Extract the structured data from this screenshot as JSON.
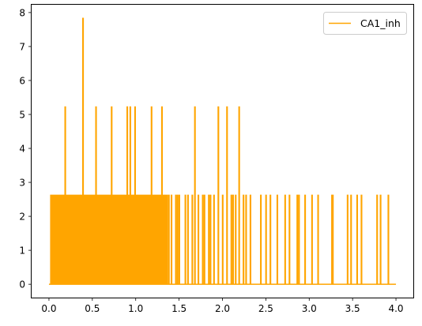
{
  "chart_data": {
    "type": "line",
    "title": "",
    "xlabel": "",
    "ylabel": "",
    "xlim": [
      -0.2,
      4.2
    ],
    "ylim": [
      -0.392,
      8.23
    ],
    "xticks": [
      0.0,
      0.5,
      1.0,
      1.5,
      2.0,
      2.5,
      3.0,
      3.5,
      4.0
    ],
    "xtick_labels": [
      "0.0",
      "0.5",
      "1.0",
      "1.5",
      "2.0",
      "2.5",
      "3.0",
      "3.5",
      "4.0"
    ],
    "yticks": [
      0,
      1,
      2,
      3,
      4,
      5,
      6,
      7,
      8
    ],
    "ytick_labels": [
      "0",
      "1",
      "2",
      "3",
      "4",
      "5",
      "6",
      "7",
      "8"
    ],
    "grid": false,
    "legend_position": "top-right",
    "baseline": 0,
    "x_start": 0.0,
    "x_end": 4.0,
    "dense_region": [
      0.02,
      1.35
    ],
    "series": [
      {
        "name": "CA1_inh",
        "color": "#FFA500",
        "spikes": [
          {
            "x": 0.03,
            "y": 2.62
          },
          {
            "x": 0.05,
            "y": 2.62
          },
          {
            "x": 0.08,
            "y": 2.62
          },
          {
            "x": 0.11,
            "y": 2.62
          },
          {
            "x": 0.14,
            "y": 2.62
          },
          {
            "x": 0.16,
            "y": 2.62
          },
          {
            "x": 0.185,
            "y": 5.22
          },
          {
            "x": 0.21,
            "y": 2.62
          },
          {
            "x": 0.24,
            "y": 2.62
          },
          {
            "x": 0.27,
            "y": 2.62
          },
          {
            "x": 0.3,
            "y": 2.62
          },
          {
            "x": 0.33,
            "y": 2.62
          },
          {
            "x": 0.36,
            "y": 2.62
          },
          {
            "x": 0.39,
            "y": 7.83
          },
          {
            "x": 0.42,
            "y": 2.62
          },
          {
            "x": 0.45,
            "y": 2.62
          },
          {
            "x": 0.48,
            "y": 2.62
          },
          {
            "x": 0.51,
            "y": 2.62
          },
          {
            "x": 0.54,
            "y": 5.22
          },
          {
            "x": 0.57,
            "y": 2.62
          },
          {
            "x": 0.6,
            "y": 2.62
          },
          {
            "x": 0.63,
            "y": 2.62
          },
          {
            "x": 0.66,
            "y": 2.62
          },
          {
            "x": 0.69,
            "y": 2.62
          },
          {
            "x": 0.72,
            "y": 5.22
          },
          {
            "x": 0.75,
            "y": 2.62
          },
          {
            "x": 0.78,
            "y": 2.62
          },
          {
            "x": 0.81,
            "y": 2.62
          },
          {
            "x": 0.84,
            "y": 2.62
          },
          {
            "x": 0.87,
            "y": 2.62
          },
          {
            "x": 0.9,
            "y": 5.22
          },
          {
            "x": 0.935,
            "y": 5.22
          },
          {
            "x": 0.96,
            "y": 2.62
          },
          {
            "x": 0.99,
            "y": 5.22
          },
          {
            "x": 1.02,
            "y": 2.62
          },
          {
            "x": 1.05,
            "y": 2.62
          },
          {
            "x": 1.08,
            "y": 2.62
          },
          {
            "x": 1.11,
            "y": 2.62
          },
          {
            "x": 1.14,
            "y": 2.62
          },
          {
            "x": 1.18,
            "y": 5.22
          },
          {
            "x": 1.21,
            "y": 2.62
          },
          {
            "x": 1.25,
            "y": 2.62
          },
          {
            "x": 1.3,
            "y": 5.22
          },
          {
            "x": 1.36,
            "y": 2.62
          },
          {
            "x": 1.38,
            "y": 2.62
          },
          {
            "x": 1.41,
            "y": 2.62
          },
          {
            "x": 1.46,
            "y": 2.62
          },
          {
            "x": 1.48,
            "y": 2.62
          },
          {
            "x": 1.5,
            "y": 2.62
          },
          {
            "x": 1.57,
            "y": 2.62
          },
          {
            "x": 1.6,
            "y": 2.62
          },
          {
            "x": 1.65,
            "y": 2.62
          },
          {
            "x": 1.68,
            "y": 5.22
          },
          {
            "x": 1.72,
            "y": 2.62
          },
          {
            "x": 1.77,
            "y": 2.62
          },
          {
            "x": 1.79,
            "y": 2.62
          },
          {
            "x": 1.84,
            "y": 2.62
          },
          {
            "x": 1.86,
            "y": 2.62
          },
          {
            "x": 1.9,
            "y": 2.62
          },
          {
            "x": 1.95,
            "y": 5.22
          },
          {
            "x": 2.0,
            "y": 2.62
          },
          {
            "x": 2.05,
            "y": 5.22
          },
          {
            "x": 2.1,
            "y": 2.62
          },
          {
            "x": 2.12,
            "y": 2.62
          },
          {
            "x": 2.15,
            "y": 2.62
          },
          {
            "x": 2.19,
            "y": 5.22
          },
          {
            "x": 2.24,
            "y": 2.62
          },
          {
            "x": 2.27,
            "y": 2.62
          },
          {
            "x": 2.32,
            "y": 2.62
          },
          {
            "x": 2.44,
            "y": 2.62
          },
          {
            "x": 2.5,
            "y": 2.62
          },
          {
            "x": 2.55,
            "y": 2.62
          },
          {
            "x": 2.63,
            "y": 2.62
          },
          {
            "x": 2.72,
            "y": 2.62
          },
          {
            "x": 2.77,
            "y": 2.62
          },
          {
            "x": 2.86,
            "y": 2.62
          },
          {
            "x": 2.88,
            "y": 2.62
          },
          {
            "x": 2.95,
            "y": 2.62
          },
          {
            "x": 3.03,
            "y": 2.62
          },
          {
            "x": 3.1,
            "y": 2.62
          },
          {
            "x": 3.26,
            "y": 2.62
          },
          {
            "x": 3.27,
            "y": 2.62
          },
          {
            "x": 3.44,
            "y": 2.62
          },
          {
            "x": 3.48,
            "y": 2.62
          },
          {
            "x": 3.55,
            "y": 2.62
          },
          {
            "x": 3.6,
            "y": 2.62
          },
          {
            "x": 3.78,
            "y": 2.62
          },
          {
            "x": 3.82,
            "y": 2.62
          },
          {
            "x": 3.91,
            "y": 2.62
          }
        ]
      }
    ]
  }
}
